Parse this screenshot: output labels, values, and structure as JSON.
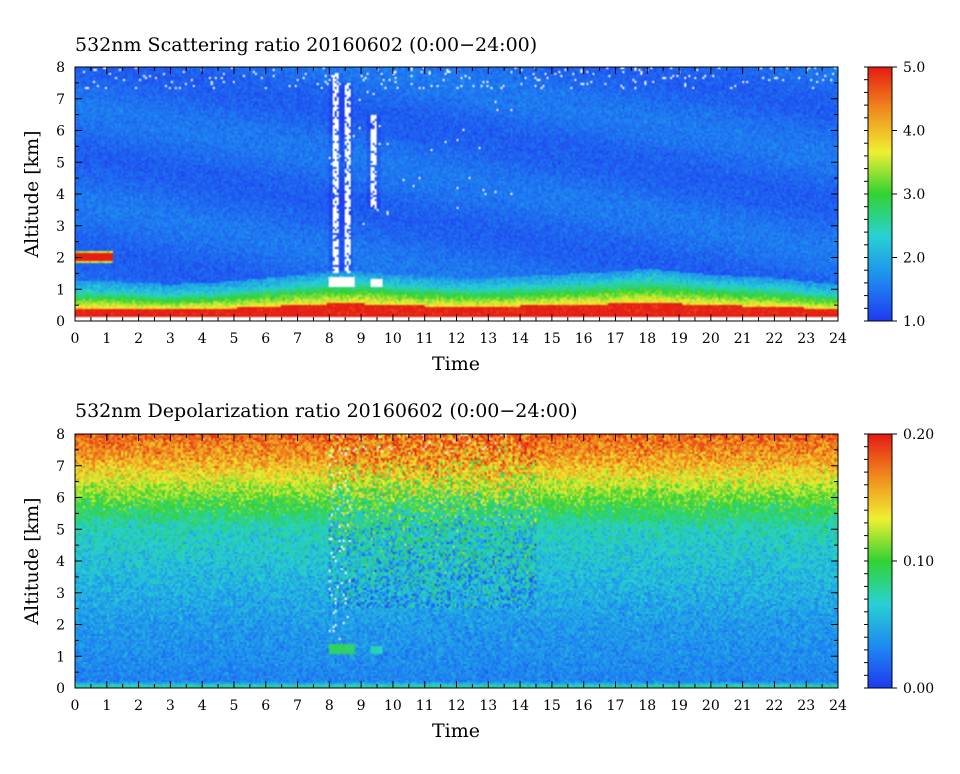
{
  "chart_data": [
    {
      "type": "heatmap",
      "title": "532nm Scattering ratio  20160602 (0:00−24:00)",
      "xlabel": "Time",
      "ylabel": "Altitude [km]",
      "xlim": [
        0,
        24
      ],
      "ylim": [
        0,
        8
      ],
      "xticks": [
        "0",
        "1",
        "2",
        "3",
        "4",
        "5",
        "6",
        "7",
        "8",
        "9",
        "10",
        "11",
        "12",
        "13",
        "14",
        "15",
        "16",
        "17",
        "18",
        "19",
        "20",
        "21",
        "22",
        "23",
        "24"
      ],
      "yticks": [
        "0",
        "1",
        "2",
        "3",
        "4",
        "5",
        "6",
        "7",
        "8"
      ],
      "colorbar": {
        "range": [
          1.0,
          5.0
        ],
        "ticks": [
          "1.0",
          "2.0",
          "3.0",
          "4.0",
          "5.0"
        ],
        "colormap": [
          "#1e3cf0",
          "#1e8cf0",
          "#28d2d2",
          "#32d232",
          "#f0f032",
          "#f08c1e",
          "#e61e14"
        ]
      },
      "features": {
        "background_value": 1.4,
        "boundary_layer_top_km": [
          0.9,
          0.9,
          0.85,
          0.8,
          0.85,
          0.9,
          1.0,
          1.1,
          1.2,
          1.2,
          1.1,
          1.05,
          1.0,
          1.0,
          1.05,
          1.1,
          1.15,
          1.2,
          1.3,
          1.2,
          1.1,
          1.05,
          1.0,
          0.9,
          0.8
        ],
        "cloud_layer": {
          "time": [
            0.0,
            1.2
          ],
          "altitude_km": [
            1.8,
            2.2
          ],
          "value": 5.0
        },
        "cloud_segments": [
          {
            "time": [
              8.0,
              8.8
            ],
            "altitude_km": [
              1.1,
              1.4
            ]
          },
          {
            "time": [
              9.3,
              9.7
            ],
            "altitude_km": [
              1.1,
              1.3
            ]
          }
        ],
        "precipitation_columns": [
          {
            "time": 8.2,
            "altitude_km": [
              1.5,
              7.8
            ]
          },
          {
            "time": 8.55,
            "altitude_km": [
              1.5,
              7.5
            ]
          },
          {
            "time": 9.4,
            "altitude_km": [
              3.5,
              6.5
            ]
          }
        ]
      }
    },
    {
      "type": "heatmap",
      "title": "532nm Depolarization ratio  20160602 (0:00−24:00)",
      "xlabel": "Time",
      "ylabel": "Altitude [km]",
      "xlim": [
        0,
        24
      ],
      "ylim": [
        0,
        8
      ],
      "xticks": [
        "0",
        "1",
        "2",
        "3",
        "4",
        "5",
        "6",
        "7",
        "8",
        "9",
        "10",
        "11",
        "12",
        "13",
        "14",
        "15",
        "16",
        "17",
        "18",
        "19",
        "20",
        "21",
        "22",
        "23",
        "24"
      ],
      "yticks": [
        "0",
        "1",
        "2",
        "3",
        "4",
        "5",
        "6",
        "7",
        "8"
      ],
      "colorbar": {
        "range": [
          0.0,
          0.2
        ],
        "ticks": [
          "0.00",
          "0.10",
          "0.20"
        ],
        "colormap": [
          "#1e3cf0",
          "#1e8cf0",
          "#28d2d2",
          "#32d232",
          "#f0f032",
          "#f08c1e",
          "#e61e14"
        ]
      },
      "features": {
        "profile_km_value": [
          [
            0.0,
            0.09
          ],
          [
            0.2,
            0.03
          ],
          [
            1.0,
            0.035
          ],
          [
            2.0,
            0.04
          ],
          [
            3.0,
            0.05
          ],
          [
            4.0,
            0.06
          ],
          [
            5.0,
            0.07
          ],
          [
            5.8,
            0.1
          ],
          [
            6.5,
            0.13
          ],
          [
            7.2,
            0.16
          ],
          [
            8.0,
            0.18
          ]
        ],
        "noisy_region": {
          "time": [
            8.0,
            14.5
          ],
          "altitude_km": [
            2.5,
            8.0
          ]
        },
        "cloud_segments": [
          {
            "time": [
              8.0,
              8.8
            ],
            "altitude_km": [
              1.1,
              1.4
            ],
            "value": 0.09
          },
          {
            "time": [
              9.3,
              9.7
            ],
            "altitude_km": [
              1.1,
              1.3
            ],
            "value": 0.07
          }
        ]
      }
    }
  ]
}
